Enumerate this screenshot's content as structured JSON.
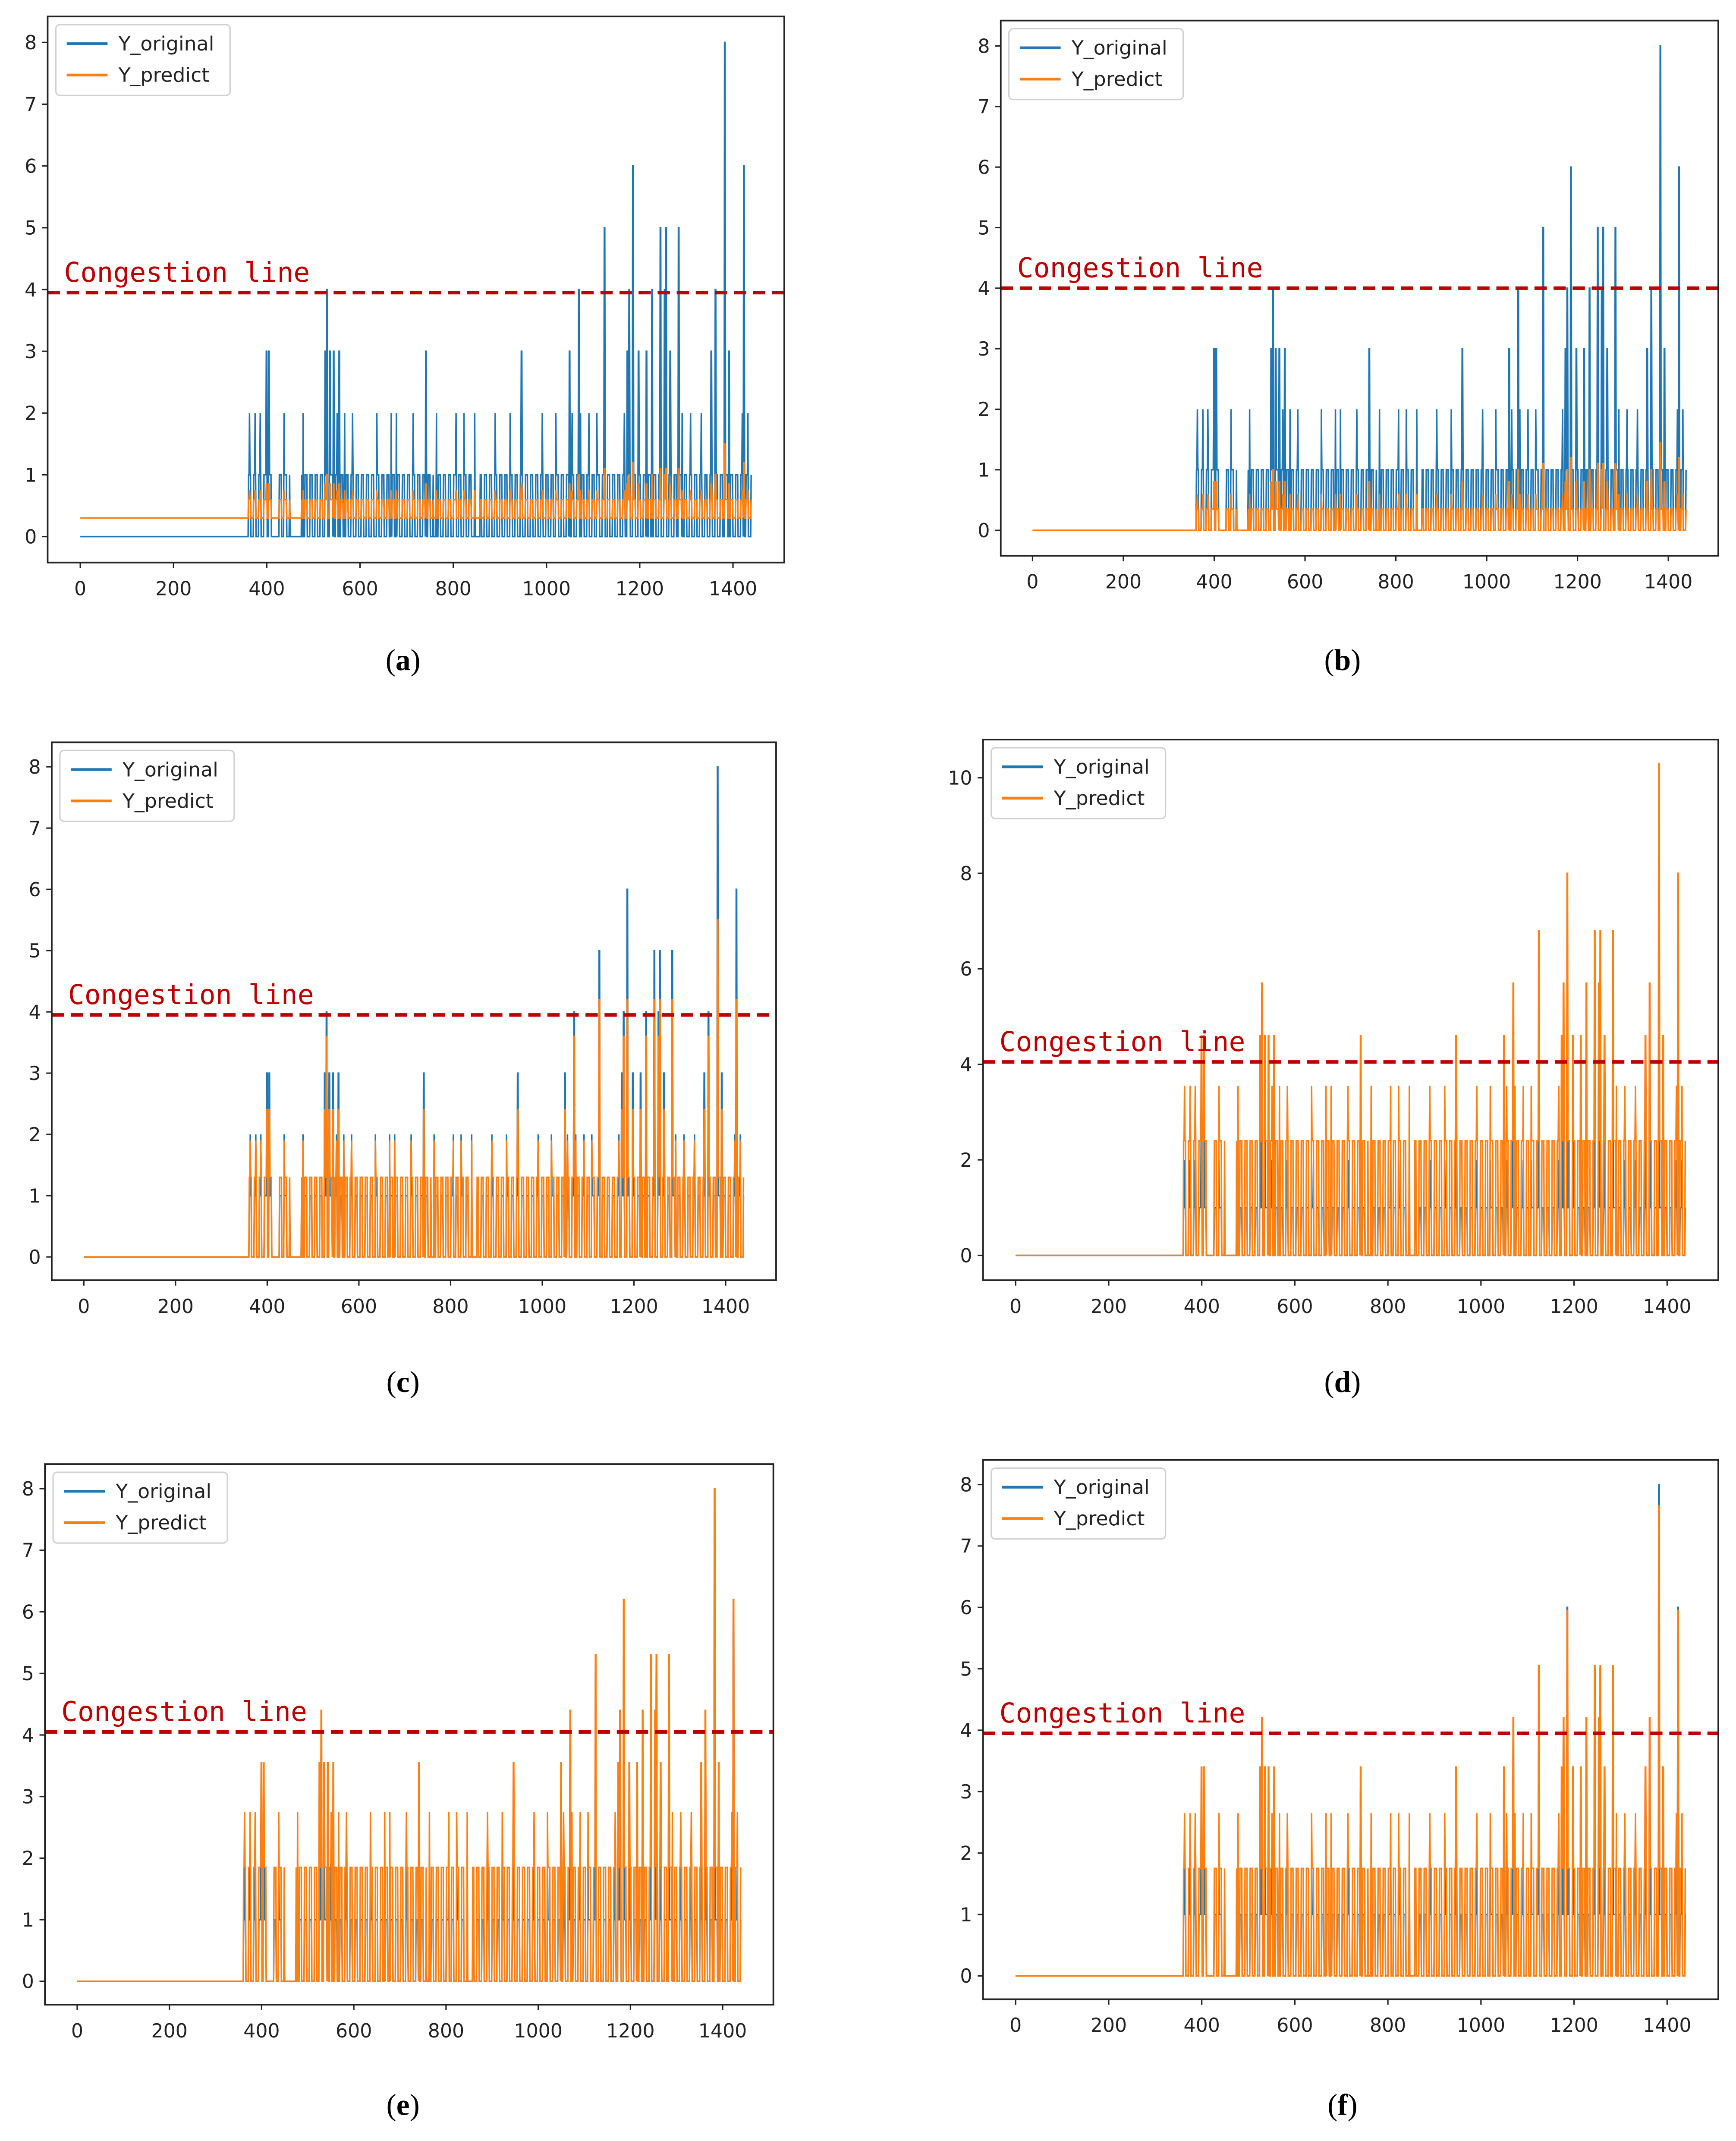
{
  "colors": {
    "original": "#1f77b4",
    "predict": "#ff7f0e",
    "congestion": "#c00000"
  },
  "chart_data": [
    {
      "id": "a",
      "caption_letter": "a",
      "type": "line",
      "legend": [
        "Y_original",
        "Y_predict"
      ],
      "legend_placement": "top-left",
      "xlim": [
        -70,
        1510
      ],
      "ylim": [
        -0.42,
        8.42
      ],
      "xticks": [
        0,
        200,
        400,
        600,
        800,
        1000,
        1200,
        1400
      ],
      "yticks": [
        0,
        1,
        2,
        3,
        4,
        5,
        6,
        7,
        8
      ],
      "congestion": {
        "label": "Congestion line",
        "value": 3.95
      },
      "predict_level_map": {
        "0": 0.3,
        "1": 0.6,
        "2": 0.75,
        "3": 0.85,
        "4": 1.0,
        "5": 1.1,
        "6": 1.2,
        "8": 1.5
      }
    },
    {
      "id": "b",
      "caption_letter": "b",
      "type": "line",
      "legend": [
        "Y_original",
        "Y_predict"
      ],
      "legend_placement": "top-left",
      "xlim": [
        -70,
        1510
      ],
      "ylim": [
        -0.42,
        8.42
      ],
      "xticks": [
        0,
        200,
        400,
        600,
        800,
        1000,
        1200,
        1400
      ],
      "yticks": [
        0,
        1,
        2,
        3,
        4,
        5,
        6,
        7,
        8
      ],
      "congestion": {
        "label": "Congestion line",
        "value": 4.0
      },
      "predict_level_map": {
        "0": 0,
        "1": 0.35,
        "2": 0.6,
        "3": 0.8,
        "4": 1.0,
        "5": 1.1,
        "6": 1.2,
        "8": 1.45
      }
    },
    {
      "id": "c",
      "caption_letter": "c",
      "type": "line",
      "legend": [
        "Y_original",
        "Y_predict"
      ],
      "legend_placement": "top-left",
      "xlim": [
        -70,
        1510
      ],
      "ylim": [
        -0.38,
        8.4
      ],
      "xticks": [
        0,
        200,
        400,
        600,
        800,
        1000,
        1200,
        1400
      ],
      "yticks": [
        0,
        1,
        2,
        3,
        4,
        5,
        6,
        7,
        8
      ],
      "congestion": {
        "label": "Congestion line",
        "value": 3.95
      },
      "predict_level_map": {
        "0": 0,
        "1": 1.3,
        "2": 1.9,
        "3": 2.4,
        "4": 3.6,
        "5": 4.2,
        "6": 4.2,
        "8": 5.5
      }
    },
    {
      "id": "d",
      "caption_letter": "d",
      "type": "line",
      "legend": [
        "Y_original",
        "Y_predict"
      ],
      "legend_placement": "top-left",
      "xlim": [
        -70,
        1510
      ],
      "ylim": [
        -0.52,
        10.8
      ],
      "xticks": [
        0,
        200,
        400,
        600,
        800,
        1000,
        1200,
        1400
      ],
      "yticks": [
        0,
        2,
        4,
        6,
        8,
        10
      ],
      "congestion": {
        "label": "Congestion line",
        "value": 4.05
      },
      "predict_level_map": {
        "0": 0,
        "1": 2.4,
        "2": 3.55,
        "3": 4.6,
        "4": 5.7,
        "5": 6.8,
        "6": 8.0,
        "8": 10.3
      }
    },
    {
      "id": "e",
      "caption_letter": "e",
      "type": "line",
      "legend": [
        "Y_original",
        "Y_predict"
      ],
      "legend_placement": "top-left",
      "xlim": [
        -70,
        1510
      ],
      "ylim": [
        -0.38,
        8.4
      ],
      "xticks": [
        0,
        200,
        400,
        600,
        800,
        1000,
        1200,
        1400
      ],
      "yticks": [
        0,
        1,
        2,
        3,
        4,
        5,
        6,
        7,
        8
      ],
      "congestion": {
        "label": "Congestion line",
        "value": 4.05
      },
      "predict_level_map": {
        "0": 0,
        "1": 1.85,
        "2": 2.75,
        "3": 3.55,
        "4": 4.4,
        "5": 5.3,
        "6": 6.2,
        "8": 8.0
      }
    },
    {
      "id": "f",
      "caption_letter": "f",
      "type": "line",
      "legend": [
        "Y_original",
        "Y_predict"
      ],
      "legend_placement": "top-left",
      "xlim": [
        -70,
        1510
      ],
      "ylim": [
        -0.38,
        8.4
      ],
      "xticks": [
        0,
        200,
        400,
        600,
        800,
        1000,
        1200,
        1400
      ],
      "yticks": [
        0,
        1,
        2,
        3,
        4,
        5,
        6,
        7,
        8
      ],
      "congestion": {
        "label": "Congestion line",
        "value": 3.95
      },
      "predict_level_map": {
        "0": 0,
        "1": 1.75,
        "2": 2.65,
        "3": 3.4,
        "4": 4.2,
        "5": 5.05,
        "6": 5.95,
        "8": 7.65
      }
    }
  ],
  "original_series": {
    "length": 1440,
    "active_ranges": [
      [
        360,
        412
      ],
      [
        425,
        450
      ],
      [
        475,
        758
      ],
      [
        768,
        845
      ],
      [
        858,
        1440
      ]
    ],
    "active_level": 1,
    "spikes": [
      [
        363,
        2
      ],
      [
        375,
        2
      ],
      [
        386,
        2
      ],
      [
        437,
        2
      ],
      [
        478,
        2
      ],
      [
        551,
        2
      ],
      [
        567,
        2
      ],
      [
        584,
        2
      ],
      [
        636,
        2
      ],
      [
        667,
        2
      ],
      [
        678,
        2
      ],
      [
        714,
        2
      ],
      [
        764,
        2
      ],
      [
        806,
        2
      ],
      [
        823,
        2
      ],
      [
        846,
        2
      ],
      [
        890,
        2
      ],
      [
        922,
        2
      ],
      [
        991,
        2
      ],
      [
        1020,
        2
      ],
      [
        1055,
        2
      ],
      [
        1073,
        2
      ],
      [
        1091,
        2
      ],
      [
        1108,
        2
      ],
      [
        1167,
        2
      ],
      [
        1291,
        2
      ],
      [
        1309,
        2
      ],
      [
        1332,
        2
      ],
      [
        1420,
        2
      ],
      [
        1432,
        2
      ],
      [
        399,
        3
      ],
      [
        404,
        3
      ],
      [
        525,
        3
      ],
      [
        535,
        3
      ],
      [
        543,
        3
      ],
      [
        555,
        3
      ],
      [
        741,
        3
      ],
      [
        946,
        3
      ],
      [
        1049,
        3
      ],
      [
        1173,
        3
      ],
      [
        1197,
        3
      ],
      [
        1214,
        3
      ],
      [
        1265,
        3
      ],
      [
        1353,
        3
      ],
      [
        1391,
        3
      ],
      [
        529,
        4
      ],
      [
        1069,
        4
      ],
      [
        1177,
        4
      ],
      [
        1226,
        4
      ],
      [
        1253,
        4
      ],
      [
        1362,
        4
      ],
      [
        1124,
        5
      ],
      [
        1244,
        5
      ],
      [
        1256,
        5
      ],
      [
        1283,
        5
      ],
      [
        1185,
        6
      ],
      [
        1423,
        6
      ],
      [
        1382,
        8
      ]
    ]
  }
}
